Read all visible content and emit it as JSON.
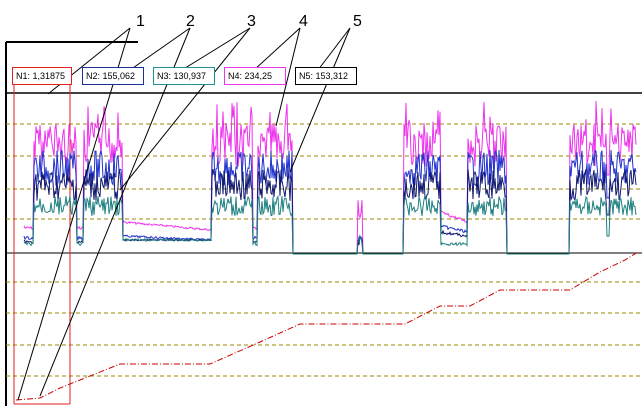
{
  "callouts": [
    "1",
    "2",
    "3",
    "4",
    "5"
  ],
  "legend": [
    {
      "label": "N1: 1,31875",
      "color": "#e02020"
    },
    {
      "label": "N2: 155,062",
      "color": "#1a2f9a"
    },
    {
      "label": "N3: 130,937",
      "color": "#1f8f8f"
    },
    {
      "label": "N4: 234,25",
      "color": "#ee33ee"
    },
    {
      "label": "N5: 153,312",
      "color": "#000000"
    }
  ],
  "colors": {
    "grid": "#9a8a00",
    "signal_magenta": "#ee33ee",
    "signal_blue": "#2233cc",
    "signal_navy": "#101870",
    "signal_teal": "#1f8080",
    "trend_red": "#cc0000",
    "frame": "#000000"
  }
}
